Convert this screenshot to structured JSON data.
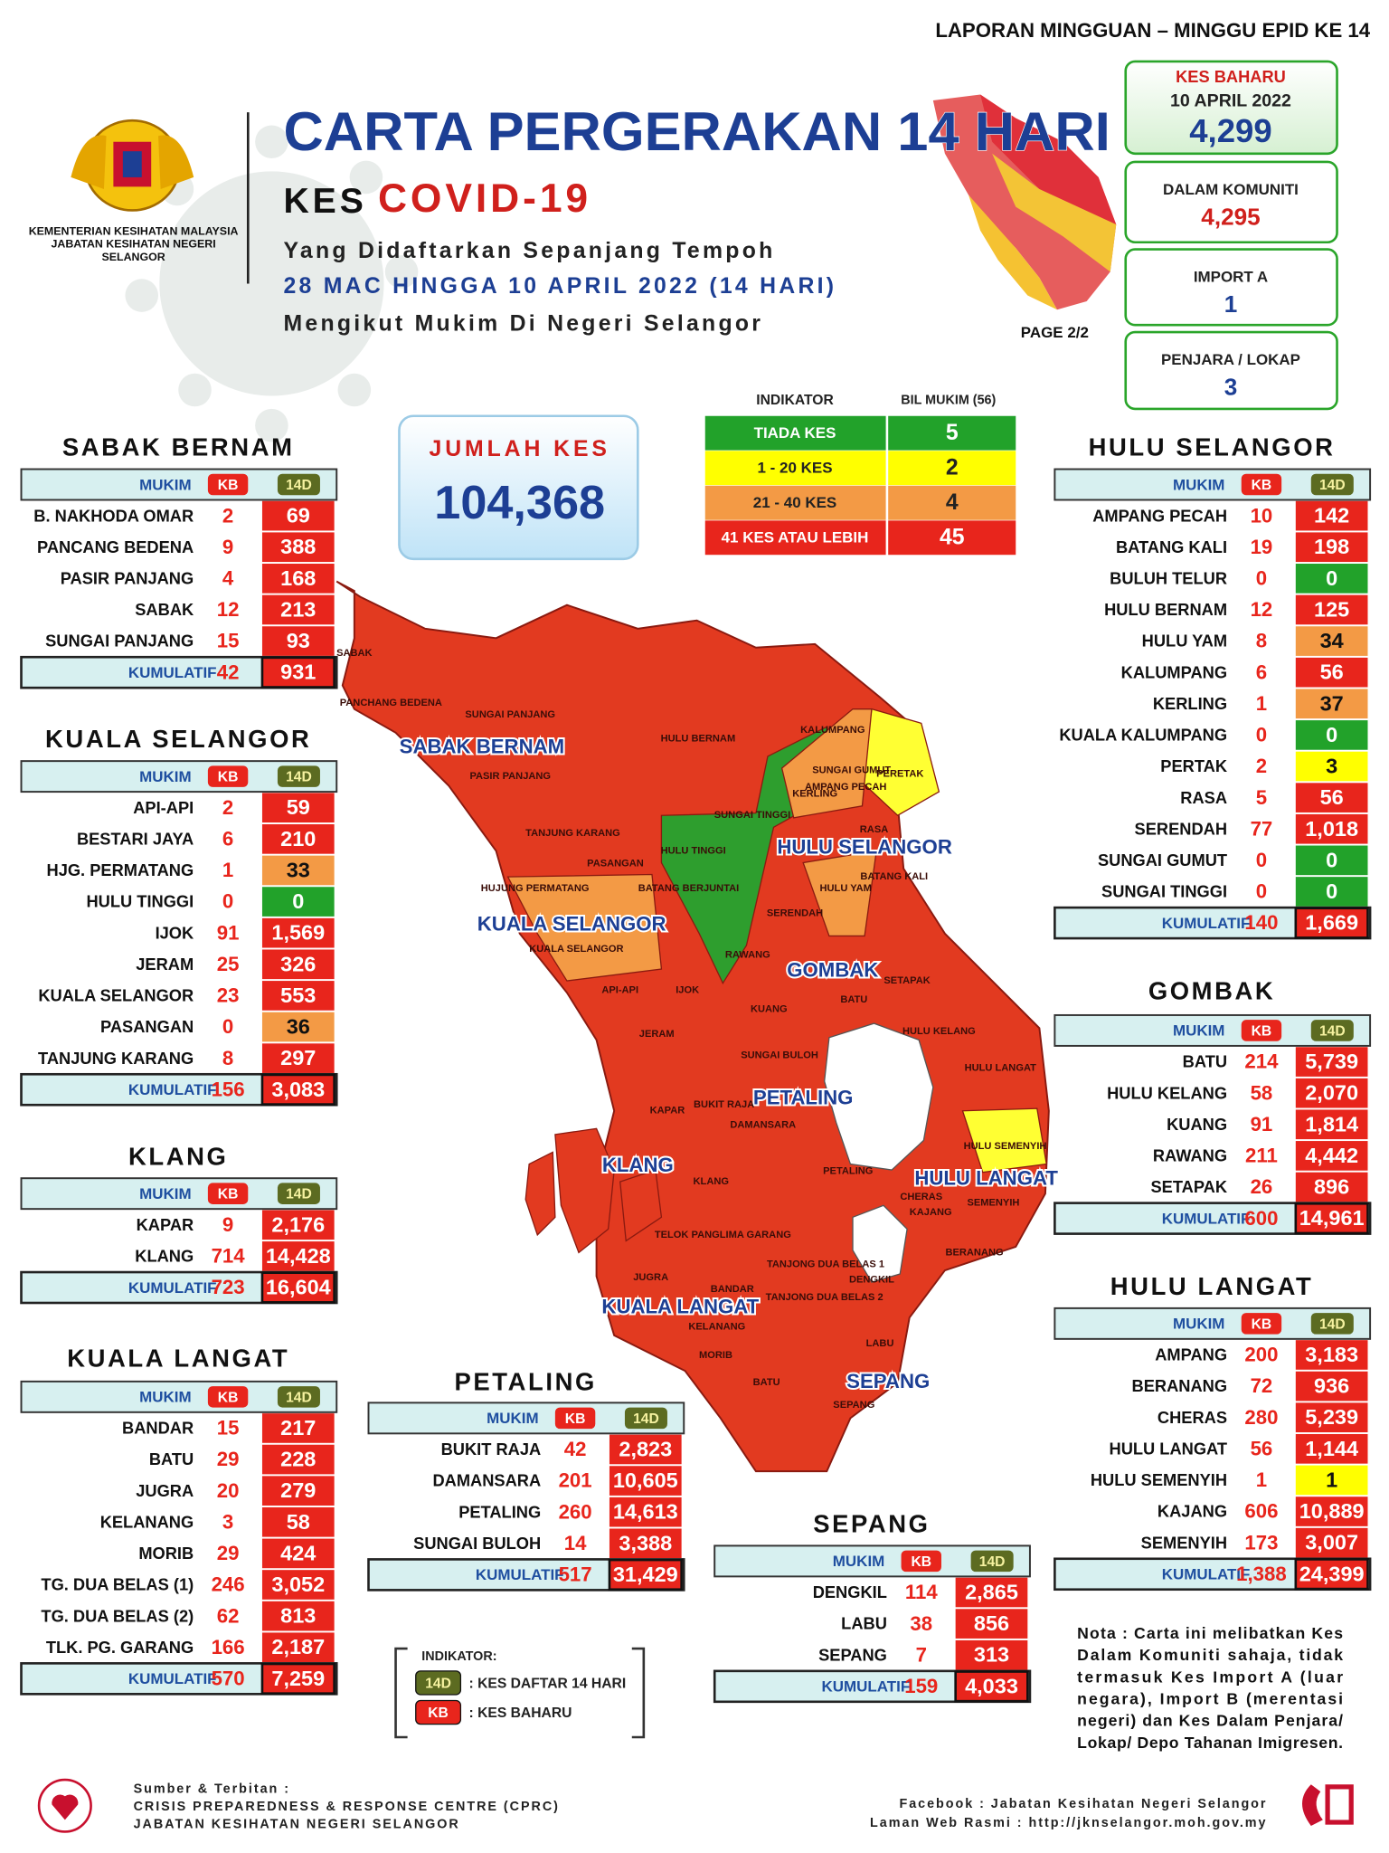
{
  "header": {
    "report_label": "LAPORAN MINGGUAN – MINGGU EPID KE 14",
    "title": "CARTA PERGERAKAN 14 HARI",
    "subtitle_prefix": "KES",
    "subtitle_highlight": "COVID-19",
    "line1": "Yang Didaftarkan Sepanjang Tempoh",
    "line2": "28 MAC HINGGA 10 APRIL 2022 (14 HARI)",
    "line3": "Mengikut Mukim Di Negeri Selangor",
    "page": "PAGE 2/2",
    "org": [
      "KEMENTERIAN KESIHATAN MALAYSIA",
      "JABATAN KESIHATAN NEGERI",
      "SELANGOR"
    ]
  },
  "stats": [
    {
      "label": "KES BAHARU",
      "date": "10 APRIL 2022",
      "value": "4,299"
    },
    {
      "label": "DALAM KOMUNITI",
      "value": "4,295"
    },
    {
      "label": "IMPORT A",
      "value": "1"
    },
    {
      "label": "PENJARA / LOKAP",
      "value": "3"
    }
  ],
  "total": {
    "label": "JUMLAH KES",
    "value": "104,368"
  },
  "indicator": {
    "header": [
      "INDIKATOR",
      "BIL MUKIM (56)"
    ],
    "rows": [
      {
        "label": "TIADA KES",
        "count": "5",
        "color": "#22a22a"
      },
      {
        "label": "1 - 20 KES",
        "count": "2",
        "color": "#ffff00"
      },
      {
        "label": "21 - 40 KES",
        "count": "4",
        "color": "#f39a45"
      },
      {
        "label": "41 KES ATAU LEBIH",
        "count": "45",
        "color": "#e8251c"
      }
    ]
  },
  "table_header": [
    "MUKIM",
    "KB",
    "14D"
  ],
  "total_label": "KUMULATIF",
  "districts": [
    {
      "name": "SABAK BERNAM",
      "rows": [
        {
          "mukim": "B. NAKHODA OMAR",
          "kb": "2",
          "d14": "69",
          "color": "#e8251c"
        },
        {
          "mukim": "PANCANG BEDENA",
          "kb": "9",
          "d14": "388",
          "color": "#e8251c"
        },
        {
          "mukim": "PASIR PANJANG",
          "kb": "4",
          "d14": "168",
          "color": "#e8251c"
        },
        {
          "mukim": "SABAK",
          "kb": "12",
          "d14": "213",
          "color": "#e8251c"
        },
        {
          "mukim": "SUNGAI PANJANG",
          "kb": "15",
          "d14": "93",
          "color": "#e8251c"
        }
      ],
      "total": {
        "kb": "42",
        "d14": "931"
      }
    },
    {
      "name": "KUALA SELANGOR",
      "rows": [
        {
          "mukim": "API-API",
          "kb": "2",
          "d14": "59",
          "color": "#e8251c"
        },
        {
          "mukim": "BESTARI JAYA",
          "kb": "6",
          "d14": "210",
          "color": "#e8251c"
        },
        {
          "mukim": "HJG. PERMATANG",
          "kb": "1",
          "d14": "33",
          "color": "#f39a45"
        },
        {
          "mukim": "HULU TINGGI",
          "kb": "0",
          "d14": "0",
          "color": "#22a22a"
        },
        {
          "mukim": "IJOK",
          "kb": "91",
          "d14": "1,569",
          "color": "#e8251c"
        },
        {
          "mukim": "JERAM",
          "kb": "25",
          "d14": "326",
          "color": "#e8251c"
        },
        {
          "mukim": "KUALA SELANGOR",
          "kb": "23",
          "d14": "553",
          "color": "#e8251c"
        },
        {
          "mukim": "PASANGAN",
          "kb": "0",
          "d14": "36",
          "color": "#f39a45"
        },
        {
          "mukim": "TANJUNG KARANG",
          "kb": "8",
          "d14": "297",
          "color": "#e8251c"
        }
      ],
      "total": {
        "kb": "156",
        "d14": "3,083"
      }
    },
    {
      "name": "KLANG",
      "rows": [
        {
          "mukim": "KAPAR",
          "kb": "9",
          "d14": "2,176",
          "color": "#e8251c"
        },
        {
          "mukim": "KLANG",
          "kb": "714",
          "d14": "14,428",
          "color": "#e8251c"
        }
      ],
      "total": {
        "kb": "723",
        "d14": "16,604"
      }
    },
    {
      "name": "KUALA LANGAT",
      "rows": [
        {
          "mukim": "BANDAR",
          "kb": "15",
          "d14": "217",
          "color": "#e8251c"
        },
        {
          "mukim": "BATU",
          "kb": "29",
          "d14": "228",
          "color": "#e8251c"
        },
        {
          "mukim": "JUGRA",
          "kb": "20",
          "d14": "279",
          "color": "#e8251c"
        },
        {
          "mukim": "KELANANG",
          "kb": "3",
          "d14": "58",
          "color": "#e8251c"
        },
        {
          "mukim": "MORIB",
          "kb": "29",
          "d14": "424",
          "color": "#e8251c"
        },
        {
          "mukim": "TG. DUA BELAS (1)",
          "kb": "246",
          "d14": "3,052",
          "color": "#e8251c"
        },
        {
          "mukim": "TG. DUA BELAS (2)",
          "kb": "62",
          "d14": "813",
          "color": "#e8251c"
        },
        {
          "mukim": "TLK. PG. GARANG",
          "kb": "166",
          "d14": "2,187",
          "color": "#e8251c"
        }
      ],
      "total": {
        "kb": "570",
        "d14": "7,259"
      }
    },
    {
      "name": "PETALING",
      "rows": [
        {
          "mukim": "BUKIT RAJA",
          "kb": "42",
          "d14": "2,823",
          "color": "#e8251c"
        },
        {
          "mukim": "DAMANSARA",
          "kb": "201",
          "d14": "10,605",
          "color": "#e8251c"
        },
        {
          "mukim": "PETALING",
          "kb": "260",
          "d14": "14,613",
          "color": "#e8251c"
        },
        {
          "mukim": "SUNGAI BULOH",
          "kb": "14",
          "d14": "3,388",
          "color": "#e8251c"
        }
      ],
      "total": {
        "kb": "517",
        "d14": "31,429"
      }
    },
    {
      "name": "SEPANG",
      "rows": [
        {
          "mukim": "DENGKIL",
          "kb": "114",
          "d14": "2,865",
          "color": "#e8251c"
        },
        {
          "mukim": "LABU",
          "kb": "38",
          "d14": "856",
          "color": "#e8251c"
        },
        {
          "mukim": "SEPANG",
          "kb": "7",
          "d14": "313",
          "color": "#e8251c"
        }
      ],
      "total": {
        "kb": "159",
        "d14": "4,033"
      }
    },
    {
      "name": "HULU SELANGOR",
      "rows": [
        {
          "mukim": "AMPANG PECAH",
          "kb": "10",
          "d14": "142",
          "color": "#e8251c"
        },
        {
          "mukim": "BATANG KALI",
          "kb": "19",
          "d14": "198",
          "color": "#e8251c"
        },
        {
          "mukim": "BULUH TELUR",
          "kb": "0",
          "d14": "0",
          "color": "#22a22a"
        },
        {
          "mukim": "HULU BERNAM",
          "kb": "12",
          "d14": "125",
          "color": "#e8251c"
        },
        {
          "mukim": "HULU YAM",
          "kb": "8",
          "d14": "34",
          "color": "#f39a45"
        },
        {
          "mukim": "KALUMPANG",
          "kb": "6",
          "d14": "56",
          "color": "#e8251c"
        },
        {
          "mukim": "KERLING",
          "kb": "1",
          "d14": "37",
          "color": "#f39a45"
        },
        {
          "mukim": "KUALA KALUMPANG",
          "kb": "0",
          "d14": "0",
          "color": "#22a22a"
        },
        {
          "mukim": "PERTAK",
          "kb": "2",
          "d14": "3",
          "color": "#ffff00"
        },
        {
          "mukim": "RASA",
          "kb": "5",
          "d14": "56",
          "color": "#e8251c"
        },
        {
          "mukim": "SERENDAH",
          "kb": "77",
          "d14": "1,018",
          "color": "#e8251c"
        },
        {
          "mukim": "SUNGAI GUMUT",
          "kb": "0",
          "d14": "0",
          "color": "#22a22a"
        },
        {
          "mukim": "SUNGAI TINGGI",
          "kb": "0",
          "d14": "0",
          "color": "#22a22a"
        }
      ],
      "total": {
        "kb": "140",
        "d14": "1,669"
      }
    },
    {
      "name": "GOMBAK",
      "rows": [
        {
          "mukim": "BATU",
          "kb": "214",
          "d14": "5,739",
          "color": "#e8251c"
        },
        {
          "mukim": "HULU KELANG",
          "kb": "58",
          "d14": "2,070",
          "color": "#e8251c"
        },
        {
          "mukim": "KUANG",
          "kb": "91",
          "d14": "1,814",
          "color": "#e8251c"
        },
        {
          "mukim": "RAWANG",
          "kb": "211",
          "d14": "4,442",
          "color": "#e8251c"
        },
        {
          "mukim": "SETAPAK",
          "kb": "26",
          "d14": "896",
          "color": "#e8251c"
        }
      ],
      "total": {
        "kb": "600",
        "d14": "14,961"
      }
    },
    {
      "name": "HULU LANGAT",
      "rows": [
        {
          "mukim": "AMPANG",
          "kb": "200",
          "d14": "3,183",
          "color": "#e8251c"
        },
        {
          "mukim": "BERANANG",
          "kb": "72",
          "d14": "936",
          "color": "#e8251c"
        },
        {
          "mukim": "CHERAS",
          "kb": "280",
          "d14": "5,239",
          "color": "#e8251c"
        },
        {
          "mukim": "HULU LANGAT",
          "kb": "56",
          "d14": "1,144",
          "color": "#e8251c"
        },
        {
          "mukim": "HULU SEMENYIH",
          "kb": "1",
          "d14": "1",
          "color": "#ffff00"
        },
        {
          "mukim": "KAJANG",
          "kb": "606",
          "d14": "10,889",
          "color": "#e8251c"
        },
        {
          "mukim": "SEMENYIH",
          "kb": "173",
          "d14": "3,007",
          "color": "#e8251c"
        }
      ],
      "total": {
        "kb": "1,388",
        "d14": "24,399"
      }
    }
  ],
  "map": {
    "districts": [
      "SABAK BERNAM",
      "HULU SELANGOR",
      "KUALA SELANGOR",
      "GOMBAK",
      "PETALING",
      "KLANG",
      "HULU LANGAT",
      "KUALA LANGAT",
      "SEPANG"
    ],
    "mukims": [
      "SABAK",
      "PANCHANG BEDENA",
      "SUNGAI PANJANG",
      "PASIR PANJANG",
      "HULU BERNAM",
      "TANJUNG KARANG",
      "SUNGAI TINGGI",
      "HULU TINGGI",
      "KERLING",
      "PERETAK",
      "RASA",
      "BATANG KALI",
      "HULU YAM",
      "SERENDAH",
      "BATANG BERJUNTAI",
      "PASANGAN",
      "HUJUNG PERMATANG",
      "KUALA SELANGOR",
      "API-API",
      "IJOK",
      "RAWANG",
      "SETAPAK",
      "BATU",
      "KUANG",
      "HULU KELANG",
      "JERAM",
      "SUNGAI BULOH",
      "HULU LANGAT",
      "KAPAR",
      "BUKIT RAJA",
      "DAMANSARA",
      "HULU SEMENYIH",
      "KLANG",
      "PETALING",
      "CHERAS",
      "KAJANG",
      "SEMENYIH",
      "BERANANG",
      "TELOK PANGLIMA GARANG",
      "TANJONG DUA BELAS 1",
      "JUGRA",
      "BANDAR",
      "TANJONG DUA BELAS 2",
      "DENGKIL",
      "KELANANG",
      "LABU",
      "MORIB",
      "BATU",
      "SEPANG",
      "KALUMPANG",
      "SUNGAI GUMUT",
      "AMPANG PECAH"
    ]
  },
  "legend": {
    "title": "INDIKATOR:",
    "items": [
      {
        "key": "14D",
        "text": ": KES DAFTAR 14 HARI"
      },
      {
        "key": "KB",
        "text": ": KES BAHARU"
      }
    ]
  },
  "note": [
    "Nota : Carta ini melibatkan Kes",
    "Dalam Komuniti sahaja, tidak",
    "termasuk Kes Import A (luar",
    "negara), Import B (merentasi",
    "negeri) dan Kes Dalam Penjara/",
    "Lokap/ Depo Tahanan Imigresen."
  ],
  "footer": {
    "left": [
      "Sumber & Terbitan :",
      "CRISIS PREPAREDNESS & RESPONSE CENTRE (CPRC)",
      "JABATAN KESIHATAN NEGERI SELANGOR"
    ],
    "right": [
      "Facebook : Jabatan Kesihatan Negeri Selangor",
      "Laman Web Rasmi : http://jknselangor.moh.gov.my"
    ]
  }
}
